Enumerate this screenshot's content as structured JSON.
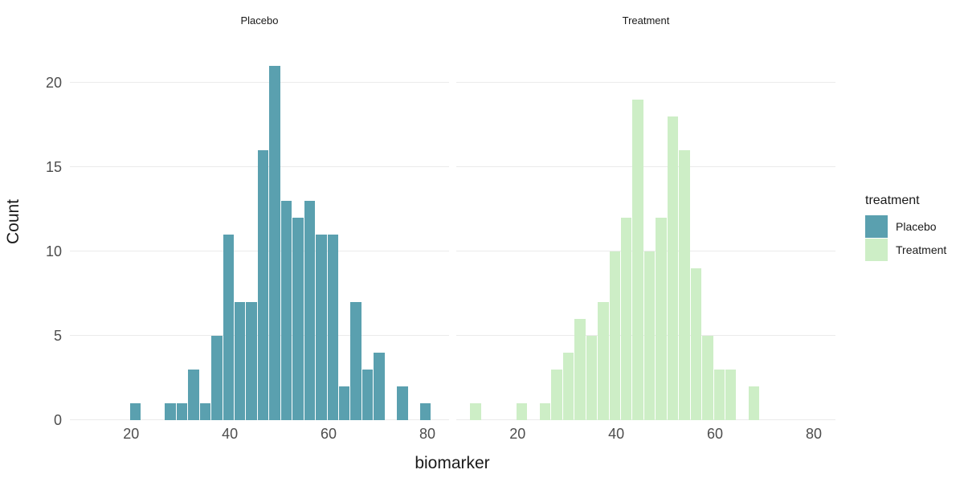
{
  "chart_data": {
    "type": "bar",
    "subtype": "faceted-histogram",
    "title": "",
    "xlabel": "biomarker",
    "ylabel": "Count",
    "xlim": [
      7.6,
      84.4
    ],
    "ylim": [
      0,
      22.9
    ],
    "xticks": [
      20,
      40,
      60,
      80
    ],
    "yticks": [
      0,
      5,
      10,
      15,
      20
    ],
    "binwidth": 2.35,
    "grid": "horizontal-major-only",
    "legend": {
      "title": "treatment",
      "position": "right",
      "entries": [
        {
          "label": "Placebo",
          "color": "#5AA0AF"
        },
        {
          "label": "Treatment",
          "color": "#CDEEC6"
        }
      ]
    },
    "facets": [
      {
        "label": "Placebo",
        "color": "#5AA0AF",
        "bars": [
          {
            "x": 19.8,
            "count": 1
          },
          {
            "x": 26.85,
            "count": 1
          },
          {
            "x": 29.2,
            "count": 1
          },
          {
            "x": 31.55,
            "count": 3
          },
          {
            "x": 33.9,
            "count": 1
          },
          {
            "x": 36.25,
            "count": 5
          },
          {
            "x": 38.6,
            "count": 11
          },
          {
            "x": 40.95,
            "count": 7
          },
          {
            "x": 43.3,
            "count": 7
          },
          {
            "x": 45.65,
            "count": 16
          },
          {
            "x": 48.0,
            "count": 21
          },
          {
            "x": 50.35,
            "count": 13
          },
          {
            "x": 52.7,
            "count": 12
          },
          {
            "x": 55.05,
            "count": 13
          },
          {
            "x": 57.4,
            "count": 11
          },
          {
            "x": 59.75,
            "count": 11
          },
          {
            "x": 62.1,
            "count": 2
          },
          {
            "x": 64.45,
            "count": 7
          },
          {
            "x": 66.8,
            "count": 3
          },
          {
            "x": 69.15,
            "count": 4
          },
          {
            "x": 73.85,
            "count": 2
          },
          {
            "x": 78.55,
            "count": 1
          }
        ]
      },
      {
        "label": "Treatment",
        "color": "#CDEEC6",
        "bars": [
          {
            "x": 10.4,
            "count": 1
          },
          {
            "x": 19.8,
            "count": 1
          },
          {
            "x": 24.5,
            "count": 1
          },
          {
            "x": 26.85,
            "count": 3
          },
          {
            "x": 29.2,
            "count": 4
          },
          {
            "x": 31.55,
            "count": 6
          },
          {
            "x": 33.9,
            "count": 5
          },
          {
            "x": 36.25,
            "count": 7
          },
          {
            "x": 38.6,
            "count": 10
          },
          {
            "x": 40.95,
            "count": 12
          },
          {
            "x": 43.3,
            "count": 19
          },
          {
            "x": 45.65,
            "count": 10
          },
          {
            "x": 48.0,
            "count": 12
          },
          {
            "x": 50.35,
            "count": 18
          },
          {
            "x": 52.7,
            "count": 16
          },
          {
            "x": 55.05,
            "count": 9
          },
          {
            "x": 57.4,
            "count": 5
          },
          {
            "x": 59.75,
            "count": 3
          },
          {
            "x": 62.1,
            "count": 3
          },
          {
            "x": 66.8,
            "count": 2
          }
        ]
      }
    ]
  },
  "colors": {
    "background": "#FFFFFF",
    "gridline": "#EBEBEB",
    "tick_label": "#4D4D4D",
    "axis_title": "#1A1A1A",
    "strip_label": "#1A1A1A"
  }
}
